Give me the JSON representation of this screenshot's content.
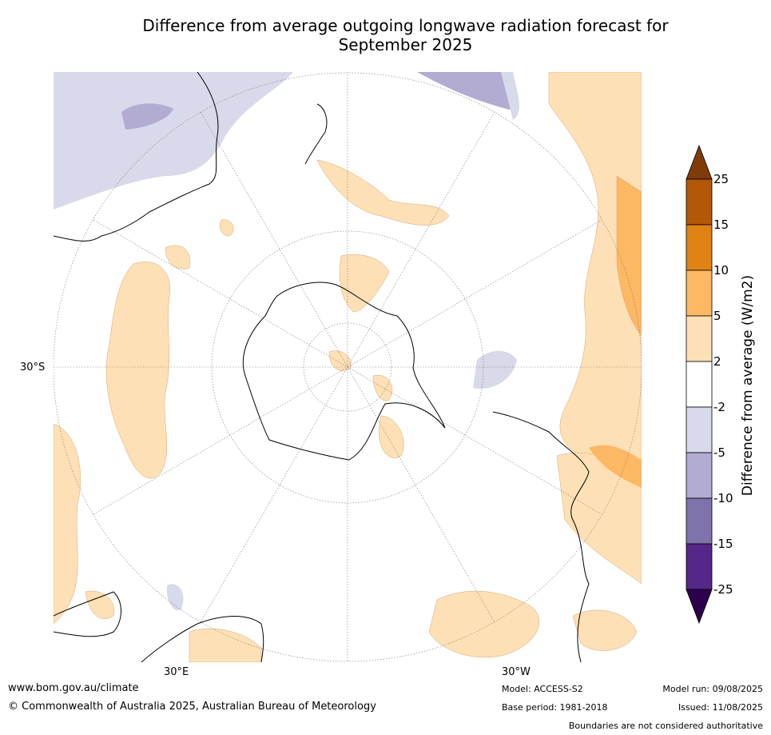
{
  "title_line1": "Difference from average outgoing longwave radiation forecast for",
  "title_line2": "September 2025",
  "graticule_labels": {
    "lat_30s": "30°S",
    "lon_30e": "30°E",
    "lon_30w": "30°W"
  },
  "colorbar": {
    "label": "Difference from average (W/m2)",
    "ticks": [
      "25",
      "15",
      "10",
      "5",
      "2",
      "-2",
      "-5",
      "-10",
      "-15",
      "-25"
    ],
    "colors": {
      "over": "#7f3b08",
      "15_25": "#b35806",
      "10_15": "#e08214",
      "5_10": "#fdb863",
      "2_5": "#fee0b6",
      "neutral": "#ffffff",
      "m2_m5": "#d8daeb",
      "m5_m10": "#b2abd2",
      "m10_m15": "#8073ac",
      "m15_m25": "#542788",
      "under": "#2d004b"
    }
  },
  "footer": {
    "website": "www.bom.gov.au/climate",
    "copyright": "© Commonwealth of Australia 2025, Australian Bureau of Meteorology",
    "model": "Model: ACCESS-S2",
    "base_period": "Base period: 1981-2018",
    "model_run": "Model run: 09/08/2025",
    "issued": "Issued: 11/08/2025",
    "disclaimer": "Boundaries are not considered authoritative"
  }
}
